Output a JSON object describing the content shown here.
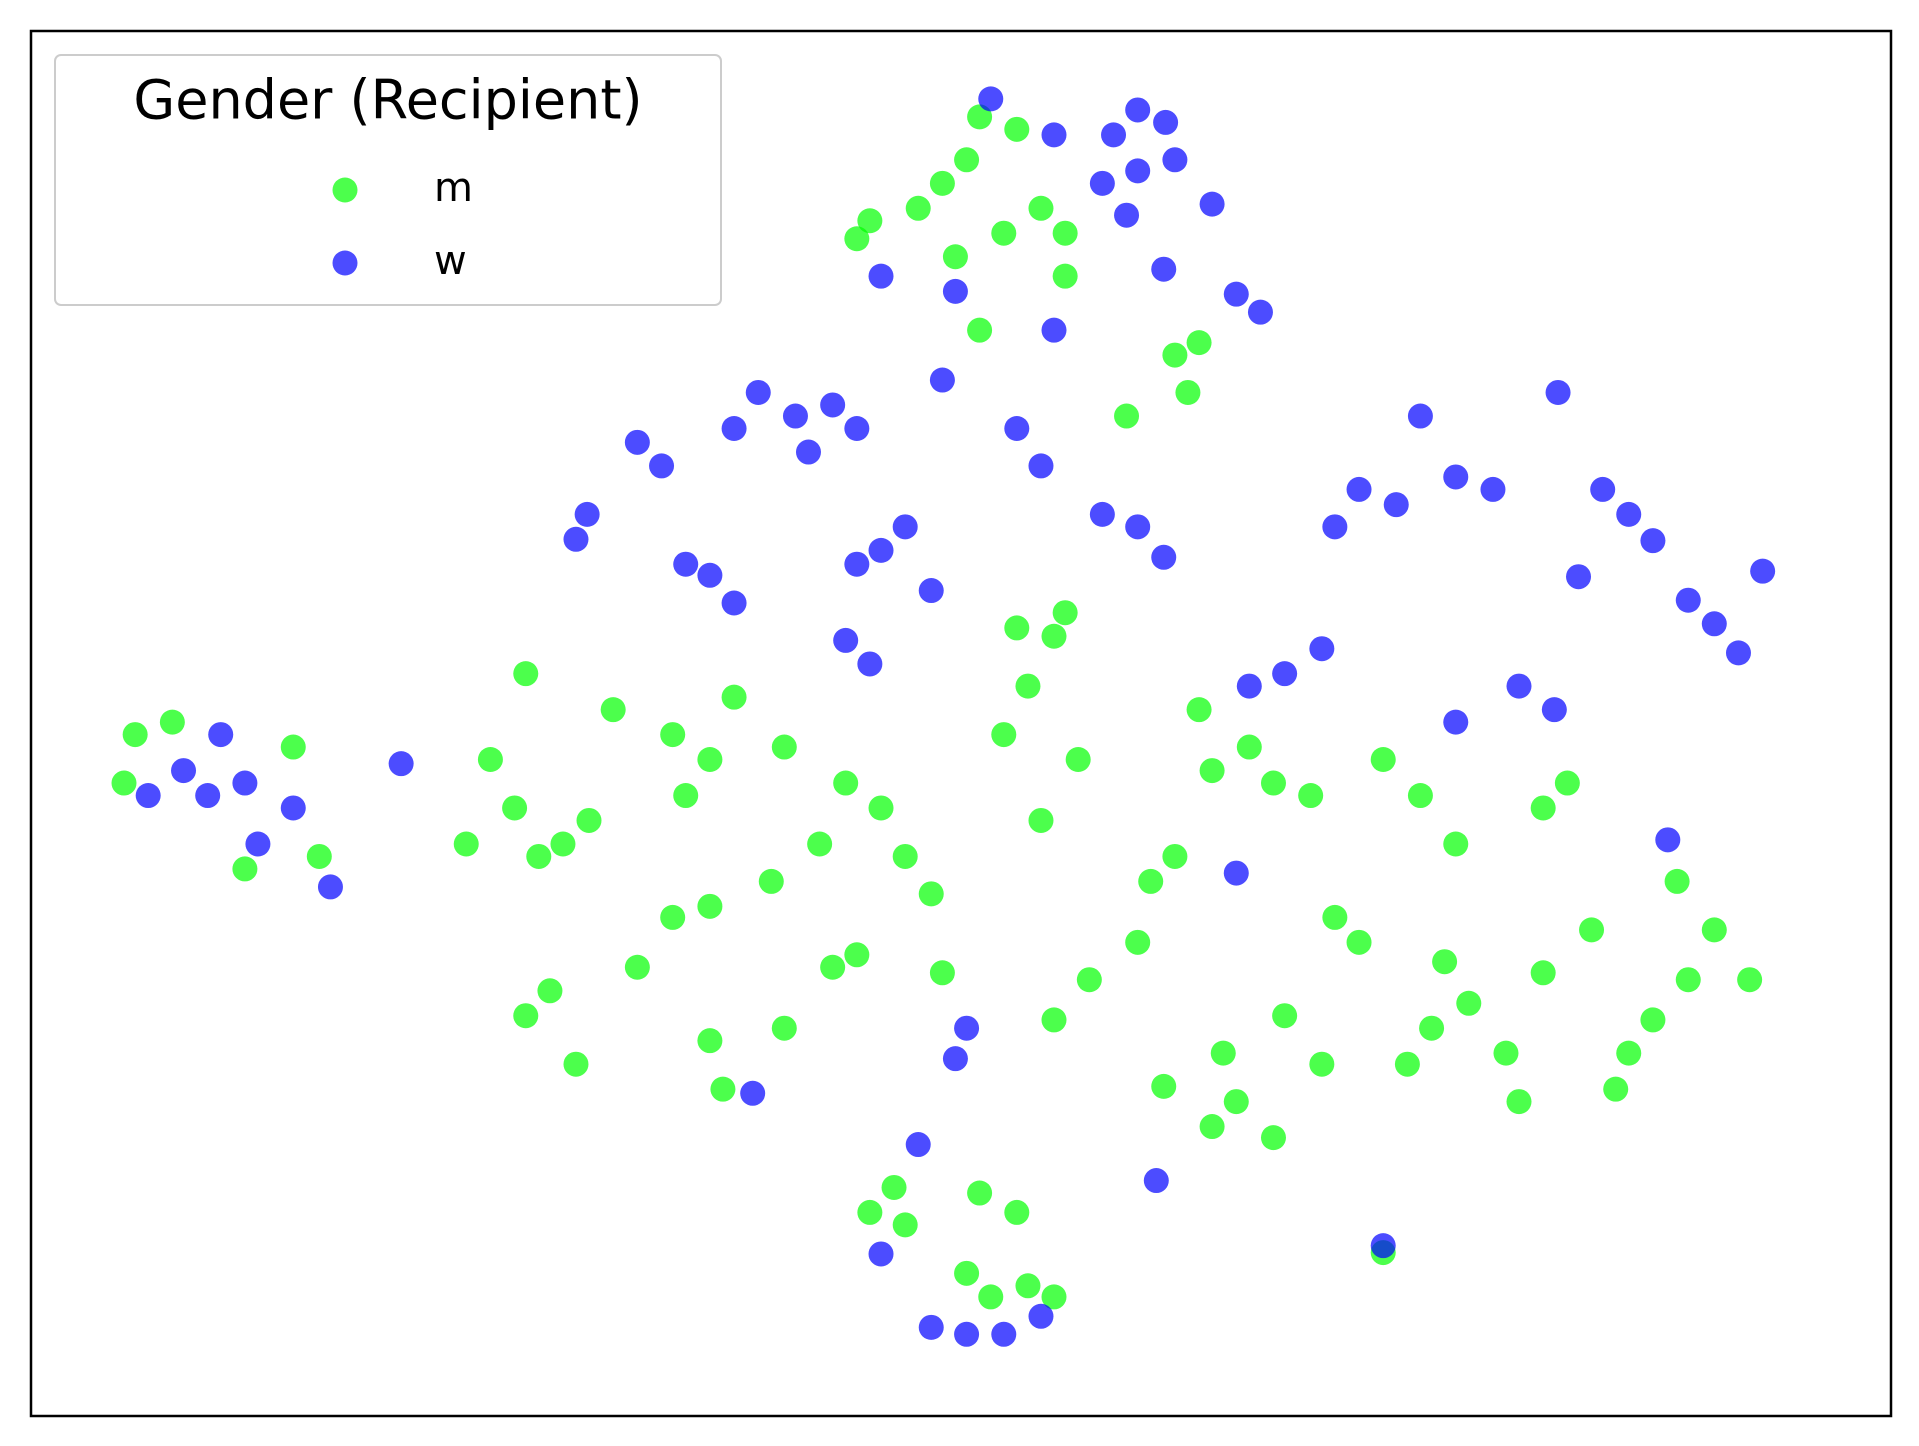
{
  "chart_data": {
    "type": "scatter",
    "legend_title": "Gender (Recipient)",
    "legend": "upper left",
    "alpha": 0.7,
    "xlim": [
      0,
      100
    ],
    "ylim": [
      0,
      100
    ],
    "series": [
      {
        "name": "m",
        "color": "#00ff00",
        "x": [
          49.0,
          50.3,
          47.7,
          51.0,
          53.0,
          54.3,
          55.6,
          52.3,
          45.1,
          44.4,
          49.7,
          55.6,
          51.0,
          61.5,
          62.8,
          62.2,
          58.9,
          28.6,
          27.3,
          30.0,
          26.0,
          23.4,
          24.7,
          26.6,
          31.3,
          34.5,
          36.5,
          35.2,
          37.8,
          40.5,
          43.8,
          45.7,
          42.4,
          47.0,
          48.4,
          39.8,
          34.5,
          36.5,
          27.9,
          26.6,
          29.3,
          32.6,
          36.5,
          37.2,
          40.5,
          43.1,
          44.4,
          49.0,
          55.0,
          55.6,
          53.6,
          52.3,
          56.3,
          54.3,
          53.0,
          63.5,
          66.8,
          65.5,
          68.8,
          61.5,
          60.2,
          62.8,
          56.9,
          55.0,
          59.5,
          64.8,
          63.5,
          66.8,
          67.4,
          64.1,
          60.9,
          69.4,
          77.3,
          75.3,
          79.3,
          76.0,
          74.0,
          81.3,
          89.1,
          90.5,
          87.2,
          85.9,
          92.4,
          88.5,
          83.9,
          81.3,
          82.6,
          76.6,
          74.7,
          72.7,
          71.4,
          70.1,
          80.0,
          85.2,
          46.4,
          45.1,
          47.0,
          51.0,
          53.0,
          50.3,
          53.6,
          55.0,
          51.6,
          5.6,
          7.6,
          14.1,
          5.0,
          11.5,
          15.5,
          72.7
        ],
        "y": [
          89.0,
          90.7,
          87.2,
          93.8,
          92.9,
          87.2,
          85.4,
          85.4,
          86.3,
          85.0,
          83.7,
          82.3,
          78.4,
          76.6,
          77.5,
          73.9,
          72.2,
          41.3,
          40.4,
          43.0,
          43.9,
          41.3,
          47.4,
          53.6,
          51.0,
          49.2,
          47.4,
          44.8,
          51.9,
          48.3,
          45.7,
          43.9,
          41.3,
          40.4,
          37.7,
          38.6,
          36.0,
          36.8,
          30.7,
          28.9,
          25.4,
          32.4,
          27.1,
          23.6,
          28.0,
          32.4,
          33.3,
          32.0,
          56.3,
          58.0,
          52.7,
          49.2,
          47.4,
          43.0,
          56.9,
          46.6,
          45.7,
          48.3,
          44.8,
          40.4,
          38.6,
          51.0,
          31.5,
          28.6,
          34.2,
          22.7,
          20.9,
          20.1,
          28.9,
          26.2,
          23.8,
          25.4,
          29.8,
          28.0,
          26.2,
          32.8,
          25.4,
          32.0,
          31.5,
          35.1,
          28.6,
          26.2,
          31.5,
          38.6,
          35.1,
          43.9,
          45.7,
          41.3,
          44.8,
          47.4,
          34.2,
          36.0,
          22.7,
          23.6,
          16.5,
          14.7,
          13.8,
          16.1,
          14.7,
          10.3,
          9.4,
          8.6,
          8.6,
          49.2,
          50.1,
          48.3,
          45.7,
          39.5,
          40.4,
          11.8
        ]
      },
      {
        "name": "w",
        "color": "#0000ff",
        "x": [
          59.5,
          58.2,
          61.0,
          57.6,
          59.5,
          61.5,
          58.9,
          51.6,
          55.0,
          63.5,
          64.8,
          66.1,
          60.9,
          45.7,
          49.7,
          55.0,
          41.1,
          39.1,
          43.1,
          37.8,
          41.8,
          44.4,
          33.9,
          32.6,
          29.9,
          29.3,
          36.5,
          35.2,
          37.8,
          45.7,
          47.0,
          44.4,
          48.4,
          43.8,
          45.1,
          59.5,
          57.6,
          60.9,
          53.0,
          49.0,
          54.3,
          71.4,
          70.1,
          73.4,
          76.6,
          78.6,
          85.9,
          84.5,
          87.2,
          83.2,
          90.5,
          89.1,
          91.8,
          93.1,
          80.0,
          81.9,
          67.4,
          65.5,
          69.4,
          74.7,
          82.1,
          76.6,
          9.5,
          8.2,
          11.5,
          6.3,
          12.2,
          14.1,
          10.2,
          16.1,
          19.9,
          50.3,
          48.4,
          52.3,
          47.7,
          45.7,
          54.3,
          72.7,
          88.0,
          60.5,
          49.7,
          50.3,
          64.8,
          38.8
        ],
        "y": [
          94.3,
          92.5,
          93.4,
          89.0,
          89.9,
          90.7,
          86.7,
          95.1,
          92.5,
          87.5,
          81.0,
          79.7,
          82.8,
          82.3,
          81.2,
          78.4,
          72.2,
          73.9,
          73.0,
          71.3,
          69.6,
          71.3,
          68.6,
          70.3,
          65.1,
          63.3,
          60.7,
          61.5,
          58.7,
          62.5,
          64.2,
          61.5,
          59.6,
          56.0,
          54.3,
          64.2,
          65.1,
          62.0,
          71.3,
          74.8,
          68.6,
          66.9,
          64.2,
          65.8,
          67.8,
          66.9,
          65.1,
          66.9,
          63.2,
          60.6,
          57.2,
          58.9,
          55.1,
          61.0,
          52.7,
          51.0,
          53.6,
          52.7,
          55.4,
          72.2,
          73.9,
          50.1,
          44.8,
          46.6,
          45.7,
          44.8,
          41.3,
          43.9,
          49.2,
          38.2,
          47.1,
          5.9,
          6.4,
          5.9,
          19.6,
          11.7,
          7.2,
          12.3,
          41.6,
          17.0,
          25.8,
          28.0,
          39.2,
          23.3
        ]
      }
    ]
  }
}
